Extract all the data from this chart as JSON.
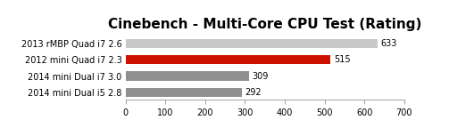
{
  "title": "Cinebench - Multi-Core CPU Test (Rating)",
  "categories": [
    "2014 mini Dual i5 2.8",
    "2014 mini Dual i7 3.0",
    "2012 mini Quad i7 2.3",
    "2013 rMBP Quad i7 2.6"
  ],
  "values": [
    292,
    309,
    515,
    633
  ],
  "bar_colors": [
    "#909090",
    "#909090",
    "#cc1100",
    "#c8c8c8"
  ],
  "value_labels": [
    "292",
    "309",
    "515",
    "633"
  ],
  "xlim": [
    0,
    700
  ],
  "xticks": [
    0,
    100,
    200,
    300,
    400,
    500,
    600,
    700
  ],
  "title_fontsize": 11,
  "label_fontsize": 7,
  "value_fontsize": 7,
  "background_color": "#ffffff",
  "bar_height": 0.55
}
